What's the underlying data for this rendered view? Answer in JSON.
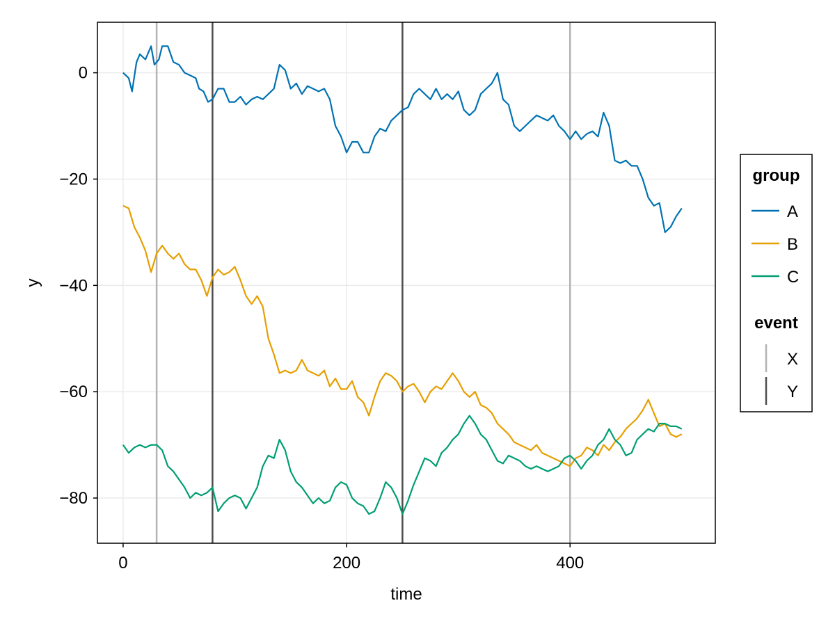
{
  "chart_data": {
    "type": "line",
    "xlabel": "time",
    "ylabel": "y",
    "xlim": [
      -23,
      530
    ],
    "ylim": [
      -88.5,
      9.5
    ],
    "xticks": [
      0,
      200,
      400
    ],
    "yticks": [
      0,
      -20,
      -40,
      -60,
      -80
    ],
    "x_tick_labels": [
      "0",
      "200",
      "400"
    ],
    "y_tick_labels": [
      "0",
      "−20",
      "−40",
      "−60",
      "−80"
    ],
    "grid": true,
    "legend_placement": "right",
    "legend": {
      "group_title": "group",
      "event_title": "event"
    },
    "series": [
      {
        "name": "A",
        "color": "#0072b2",
        "points": [
          [
            0,
            0
          ],
          [
            5,
            -1
          ],
          [
            8,
            -3.5
          ],
          [
            12,
            2
          ],
          [
            15,
            3.5
          ],
          [
            20,
            2.5
          ],
          [
            25,
            5
          ],
          [
            28,
            1.5
          ],
          [
            32,
            2.5
          ],
          [
            35,
            5
          ],
          [
            40,
            5
          ],
          [
            45,
            2
          ],
          [
            50,
            1.5
          ],
          [
            55,
            0
          ],
          [
            60,
            -0.5
          ],
          [
            65,
            -1
          ],
          [
            68,
            -3
          ],
          [
            72,
            -3.5
          ],
          [
            76,
            -5.5
          ],
          [
            80,
            -5
          ],
          [
            85,
            -3
          ],
          [
            90,
            -3
          ],
          [
            95,
            -5.5
          ],
          [
            100,
            -5.5
          ],
          [
            105,
            -4.5
          ],
          [
            110,
            -6
          ],
          [
            115,
            -5
          ],
          [
            120,
            -4.5
          ],
          [
            125,
            -5
          ],
          [
            130,
            -4
          ],
          [
            135,
            -3
          ],
          [
            140,
            1.5
          ],
          [
            145,
            0.5
          ],
          [
            150,
            -3
          ],
          [
            155,
            -2
          ],
          [
            160,
            -4
          ],
          [
            165,
            -2.5
          ],
          [
            170,
            -3
          ],
          [
            175,
            -3.5
          ],
          [
            180,
            -3
          ],
          [
            185,
            -5
          ],
          [
            190,
            -10
          ],
          [
            195,
            -12
          ],
          [
            200,
            -15
          ],
          [
            205,
            -13
          ],
          [
            210,
            -13
          ],
          [
            215,
            -15
          ],
          [
            220,
            -15
          ],
          [
            225,
            -12
          ],
          [
            230,
            -10.5
          ],
          [
            235,
            -11
          ],
          [
            240,
            -9
          ],
          [
            245,
            -8
          ],
          [
            250,
            -7
          ],
          [
            255,
            -6.5
          ],
          [
            260,
            -4
          ],
          [
            265,
            -3
          ],
          [
            270,
            -4
          ],
          [
            275,
            -5
          ],
          [
            280,
            -3
          ],
          [
            285,
            -5
          ],
          [
            290,
            -4
          ],
          [
            295,
            -5
          ],
          [
            300,
            -3.5
          ],
          [
            305,
            -7
          ],
          [
            310,
            -8
          ],
          [
            315,
            -7
          ],
          [
            320,
            -4
          ],
          [
            325,
            -3
          ],
          [
            330,
            -2
          ],
          [
            335,
            0
          ],
          [
            340,
            -5
          ],
          [
            345,
            -6
          ],
          [
            350,
            -10
          ],
          [
            355,
            -11
          ],
          [
            360,
            -10
          ],
          [
            365,
            -9
          ],
          [
            370,
            -8
          ],
          [
            375,
            -8.5
          ],
          [
            380,
            -9
          ],
          [
            385,
            -8
          ],
          [
            390,
            -10
          ],
          [
            395,
            -11
          ],
          [
            400,
            -12.5
          ],
          [
            405,
            -11
          ],
          [
            410,
            -12.5
          ],
          [
            415,
            -11.5
          ],
          [
            420,
            -11
          ],
          [
            425,
            -12
          ],
          [
            430,
            -7.5
          ],
          [
            435,
            -10
          ],
          [
            440,
            -16.5
          ],
          [
            445,
            -17
          ],
          [
            450,
            -16.5
          ],
          [
            455,
            -17.5
          ],
          [
            460,
            -17.5
          ],
          [
            465,
            -20
          ],
          [
            470,
            -23.5
          ],
          [
            475,
            -25
          ],
          [
            480,
            -24.5
          ],
          [
            485,
            -30
          ],
          [
            490,
            -29
          ],
          [
            495,
            -27
          ],
          [
            500,
            -25.5
          ]
        ]
      },
      {
        "name": "B",
        "color": "#e69f00",
        "points": [
          [
            0,
            -25
          ],
          [
            5,
            -25.5
          ],
          [
            10,
            -29
          ],
          [
            15,
            -31
          ],
          [
            20,
            -33.5
          ],
          [
            25,
            -37.5
          ],
          [
            30,
            -34
          ],
          [
            35,
            -32.5
          ],
          [
            40,
            -34
          ],
          [
            45,
            -35
          ],
          [
            50,
            -34
          ],
          [
            55,
            -36
          ],
          [
            60,
            -37
          ],
          [
            65,
            -37
          ],
          [
            70,
            -39
          ],
          [
            75,
            -42
          ],
          [
            80,
            -38.5
          ],
          [
            85,
            -37
          ],
          [
            90,
            -38
          ],
          [
            95,
            -37.5
          ],
          [
            100,
            -36.5
          ],
          [
            105,
            -39
          ],
          [
            110,
            -42
          ],
          [
            115,
            -43.5
          ],
          [
            120,
            -42
          ],
          [
            125,
            -44
          ],
          [
            130,
            -50
          ],
          [
            135,
            -53
          ],
          [
            140,
            -56.5
          ],
          [
            145,
            -56
          ],
          [
            150,
            -56.5
          ],
          [
            155,
            -56
          ],
          [
            160,
            -54
          ],
          [
            165,
            -56
          ],
          [
            170,
            -56.5
          ],
          [
            175,
            -57
          ],
          [
            180,
            -56
          ],
          [
            185,
            -59
          ],
          [
            190,
            -57.5
          ],
          [
            195,
            -59.5
          ],
          [
            200,
            -59.5
          ],
          [
            205,
            -58
          ],
          [
            210,
            -61
          ],
          [
            215,
            -62
          ],
          [
            220,
            -64.5
          ],
          [
            225,
            -61
          ],
          [
            230,
            -58
          ],
          [
            235,
            -56.5
          ],
          [
            240,
            -57
          ],
          [
            245,
            -58
          ],
          [
            250,
            -60
          ],
          [
            255,
            -59
          ],
          [
            260,
            -58.5
          ],
          [
            265,
            -60
          ],
          [
            270,
            -62
          ],
          [
            275,
            -60
          ],
          [
            280,
            -59
          ],
          [
            285,
            -59.5
          ],
          [
            290,
            -58
          ],
          [
            295,
            -56.5
          ],
          [
            300,
            -58
          ],
          [
            305,
            -60
          ],
          [
            310,
            -61
          ],
          [
            315,
            -60
          ],
          [
            320,
            -62.5
          ],
          [
            325,
            -63
          ],
          [
            330,
            -64
          ],
          [
            335,
            -66
          ],
          [
            340,
            -67
          ],
          [
            345,
            -68
          ],
          [
            350,
            -69.5
          ],
          [
            355,
            -70
          ],
          [
            360,
            -70.5
          ],
          [
            365,
            -71
          ],
          [
            370,
            -70
          ],
          [
            375,
            -71.5
          ],
          [
            380,
            -72
          ],
          [
            385,
            -72.5
          ],
          [
            390,
            -73
          ],
          [
            395,
            -73.5
          ],
          [
            400,
            -74
          ],
          [
            405,
            -72.5
          ],
          [
            410,
            -72
          ],
          [
            415,
            -70.5
          ],
          [
            420,
            -71
          ],
          [
            425,
            -72
          ],
          [
            430,
            -70
          ],
          [
            435,
            -71
          ],
          [
            440,
            -69.5
          ],
          [
            445,
            -68.5
          ],
          [
            450,
            -67
          ],
          [
            455,
            -66
          ],
          [
            460,
            -65
          ],
          [
            465,
            -63.5
          ],
          [
            470,
            -61.5
          ],
          [
            475,
            -64
          ],
          [
            480,
            -66.5
          ],
          [
            485,
            -66
          ],
          [
            490,
            -68
          ],
          [
            495,
            -68.5
          ],
          [
            500,
            -68
          ]
        ]
      },
      {
        "name": "C",
        "color": "#009e73",
        "points": [
          [
            0,
            -70
          ],
          [
            5,
            -71.5
          ],
          [
            10,
            -70.5
          ],
          [
            15,
            -70
          ],
          [
            20,
            -70.5
          ],
          [
            25,
            -70
          ],
          [
            30,
            -70
          ],
          [
            35,
            -71
          ],
          [
            40,
            -74
          ],
          [
            45,
            -75
          ],
          [
            50,
            -76.5
          ],
          [
            55,
            -78
          ],
          [
            60,
            -80
          ],
          [
            65,
            -79
          ],
          [
            70,
            -79.5
          ],
          [
            75,
            -79
          ],
          [
            80,
            -78
          ],
          [
            85,
            -82.5
          ],
          [
            90,
            -81
          ],
          [
            95,
            -80
          ],
          [
            100,
            -79.5
          ],
          [
            105,
            -80
          ],
          [
            110,
            -82
          ],
          [
            115,
            -80
          ],
          [
            120,
            -78
          ],
          [
            125,
            -74
          ],
          [
            130,
            -72
          ],
          [
            135,
            -72.5
          ],
          [
            140,
            -69
          ],
          [
            145,
            -71
          ],
          [
            150,
            -75
          ],
          [
            155,
            -77
          ],
          [
            160,
            -78
          ],
          [
            165,
            -79.5
          ],
          [
            170,
            -81
          ],
          [
            175,
            -80
          ],
          [
            180,
            -81
          ],
          [
            185,
            -80.5
          ],
          [
            190,
            -78
          ],
          [
            195,
            -77
          ],
          [
            200,
            -77.5
          ],
          [
            205,
            -80
          ],
          [
            210,
            -81
          ],
          [
            215,
            -81.5
          ],
          [
            220,
            -83
          ],
          [
            225,
            -82.5
          ],
          [
            230,
            -80
          ],
          [
            235,
            -77
          ],
          [
            240,
            -78
          ],
          [
            245,
            -80
          ],
          [
            250,
            -83
          ],
          [
            255,
            -80.5
          ],
          [
            260,
            -77.5
          ],
          [
            265,
            -75
          ],
          [
            270,
            -72.5
          ],
          [
            275,
            -73
          ],
          [
            280,
            -74
          ],
          [
            285,
            -71.5
          ],
          [
            290,
            -70.5
          ],
          [
            295,
            -69
          ],
          [
            300,
            -68
          ],
          [
            305,
            -66
          ],
          [
            310,
            -64.5
          ],
          [
            315,
            -66
          ],
          [
            320,
            -68
          ],
          [
            325,
            -69
          ],
          [
            330,
            -71
          ],
          [
            335,
            -73
          ],
          [
            340,
            -73.5
          ],
          [
            345,
            -72
          ],
          [
            350,
            -72.5
          ],
          [
            355,
            -73
          ],
          [
            360,
            -74
          ],
          [
            365,
            -74.5
          ],
          [
            370,
            -74
          ],
          [
            375,
            -74.5
          ],
          [
            380,
            -75
          ],
          [
            385,
            -74.5
          ],
          [
            390,
            -74
          ],
          [
            395,
            -72.5
          ],
          [
            400,
            -72
          ],
          [
            405,
            -73
          ],
          [
            410,
            -74.5
          ],
          [
            415,
            -73
          ],
          [
            420,
            -72
          ],
          [
            425,
            -70
          ],
          [
            430,
            -69
          ],
          [
            435,
            -67
          ],
          [
            440,
            -69
          ],
          [
            445,
            -70
          ],
          [
            450,
            -72
          ],
          [
            455,
            -71.5
          ],
          [
            460,
            -69
          ],
          [
            465,
            -68
          ],
          [
            470,
            -67
          ],
          [
            475,
            -67.5
          ],
          [
            480,
            -66
          ],
          [
            485,
            -66
          ],
          [
            490,
            -66.5
          ],
          [
            495,
            -66.5
          ],
          [
            500,
            -67
          ]
        ]
      }
    ],
    "events": [
      {
        "name": "X",
        "color": "#b3b3b3",
        "x": [
          30,
          400
        ]
      },
      {
        "name": "Y",
        "color": "#4d4d4d",
        "x": [
          80,
          250
        ]
      }
    ]
  }
}
